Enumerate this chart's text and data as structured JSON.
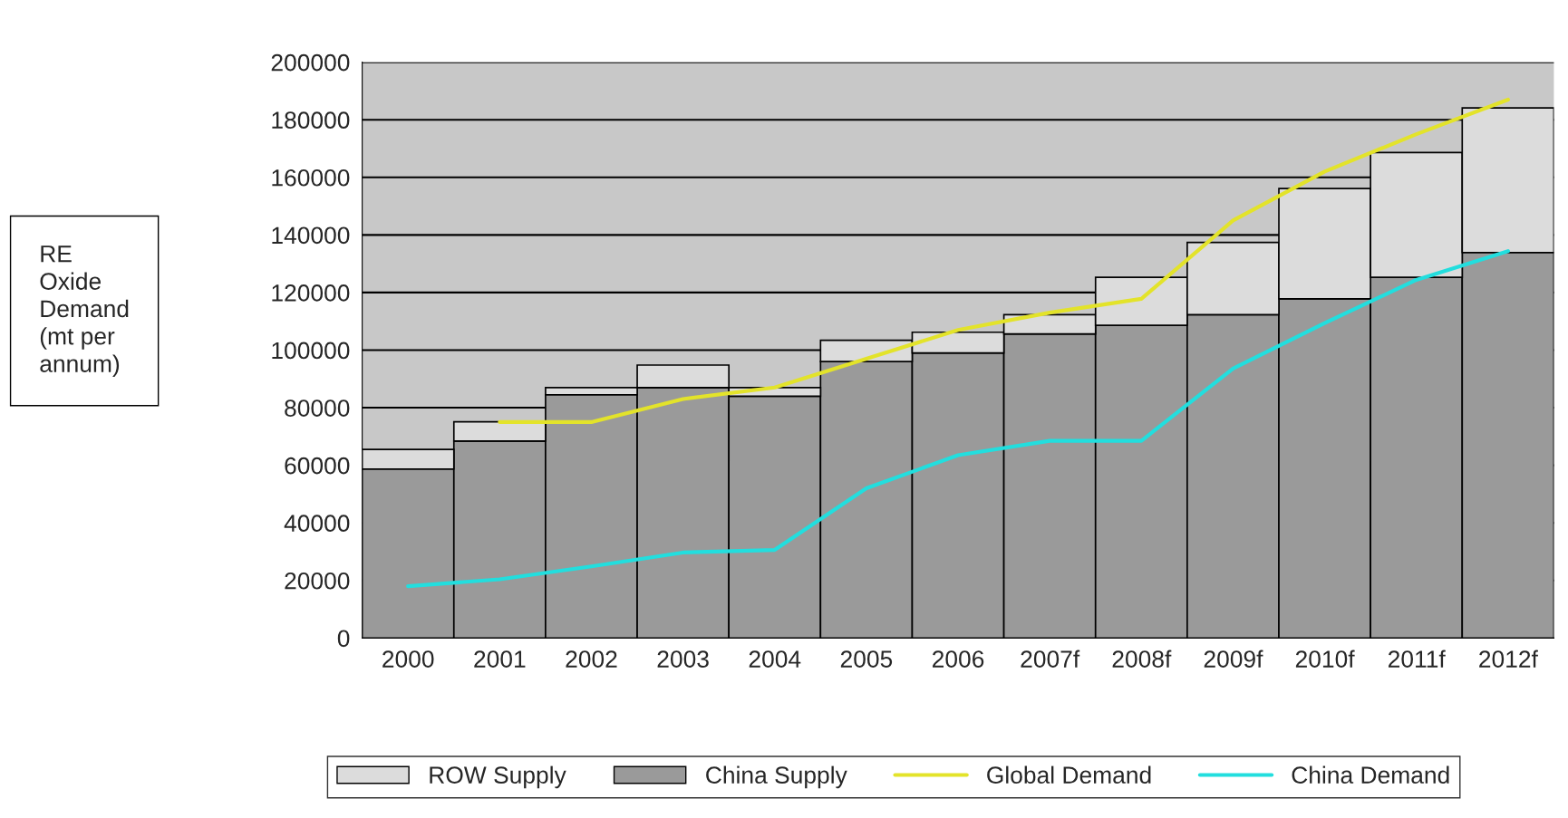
{
  "chart_data": {
    "type": "bar",
    "stacked": true,
    "annotations": [
      "RE\nOxide\nDemand\n(mt per\nannum)"
    ],
    "categories": [
      "2000",
      "2001",
      "2002",
      "2003",
      "2004",
      "2005",
      "2006",
      "2007f",
      "2008f",
      "2009f",
      "2010f",
      "2011f",
      "2012f"
    ],
    "series": [
      {
        "name": "China Supply",
        "color": "#9a9a9a",
        "values": [
          58700,
          68400,
          84500,
          87000,
          84000,
          96000,
          99000,
          105600,
          108600,
          112300,
          117800,
          125300,
          133900
        ]
      },
      {
        "name": "ROW Supply",
        "color": "#dcdcdc",
        "values": [
          6800,
          6700,
          2500,
          7800,
          3000,
          7400,
          7200,
          6700,
          16700,
          25100,
          38300,
          43300,
          50200
        ]
      },
      {
        "name": "Global Demand",
        "type": "line",
        "color": "#e3e32a",
        "values": [
          null,
          75000,
          75000,
          83000,
          87000,
          97000,
          107000,
          113000,
          117800,
          145000,
          162000,
          175000,
          187000
        ]
      },
      {
        "name": "China Demand",
        "type": "line",
        "color": "#22dede",
        "values": [
          18000,
          20400,
          24900,
          29700,
          30600,
          52000,
          63500,
          68500,
          68500,
          93600,
          109400,
          124400,
          134400
        ]
      }
    ],
    "ylim": [
      0,
      200000
    ],
    "yticks": [
      0,
      20000,
      40000,
      60000,
      80000,
      100000,
      120000,
      140000,
      160000,
      180000,
      200000
    ],
    "grid": "y",
    "legend": "bottom"
  }
}
